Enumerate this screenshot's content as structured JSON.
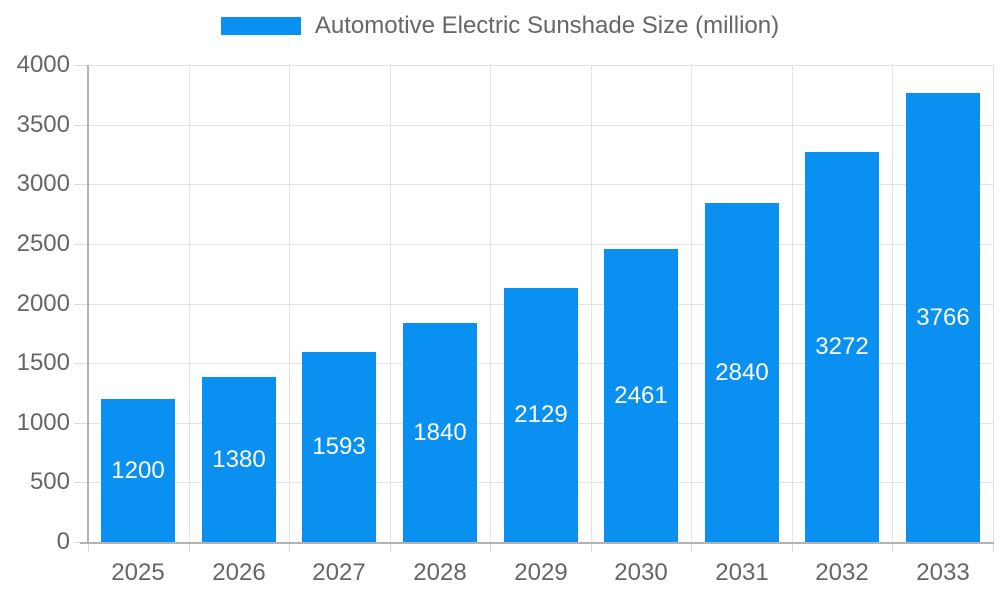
{
  "legend": {
    "label": "Automotive Electric Sunshade Size (million)"
  },
  "chart_data": {
    "type": "bar",
    "title": "Automotive Electric Sunshade Size (million)",
    "series_name": "Automotive Electric Sunshade Size (million)",
    "categories": [
      "2025",
      "2026",
      "2027",
      "2028",
      "2029",
      "2030",
      "2031",
      "2032",
      "2033"
    ],
    "values": [
      1200,
      1380,
      1593,
      1840,
      2129,
      2461,
      2840,
      3272,
      3766
    ],
    "value_labels_shown": [
      "1200",
      "1380",
      "1593",
      "1840",
      "2129",
      "2461",
      "2840",
      "3272",
      "3766"
    ],
    "xlabel": "",
    "ylabel": "",
    "ylim": [
      0,
      4000
    ],
    "yticks": [
      0,
      500,
      1000,
      1500,
      2000,
      2500,
      3000,
      3500,
      4000
    ],
    "grid": true,
    "legend_position": "top",
    "value_label_position": "inside-center",
    "colors": {
      "bar": "#0a90f0",
      "value_label_text": "#ffffff",
      "axis_text": "#666666",
      "gridline": "#e3e3e3",
      "tick_mark": "#dadada",
      "axis_line": "#b3b3b3",
      "background": "#ffffff"
    }
  }
}
